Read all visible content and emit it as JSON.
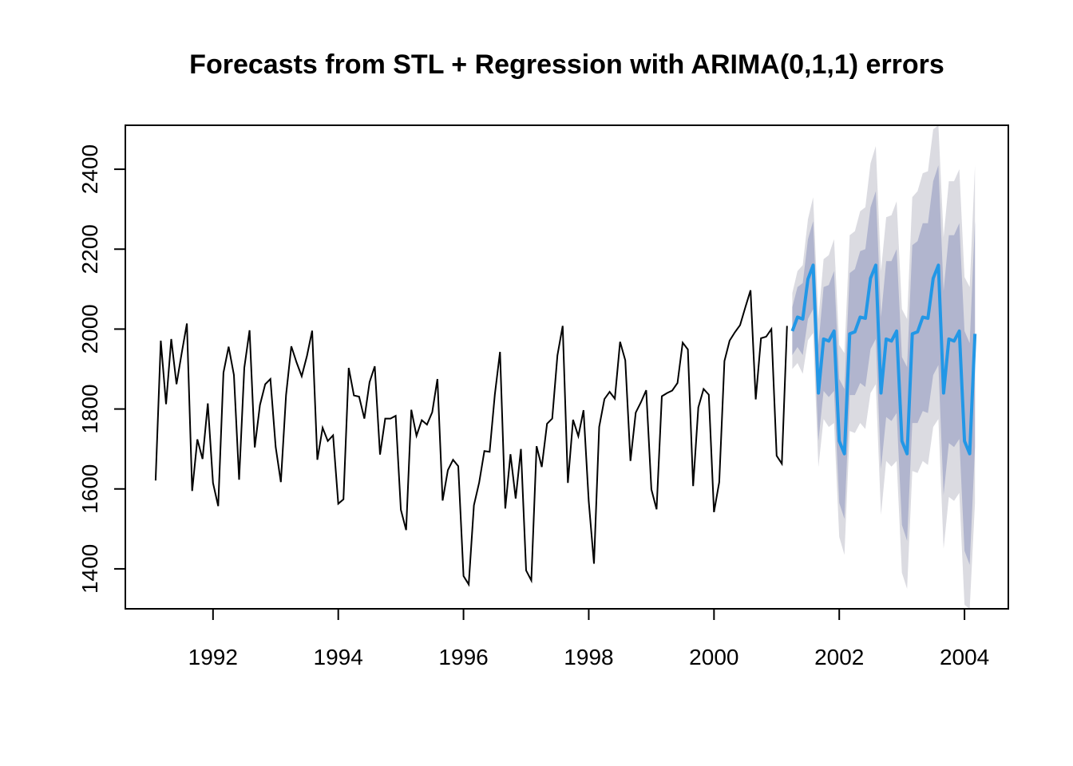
{
  "chart_data": {
    "type": "line",
    "title": "Forecasts from STL +  Regression with ARIMA(0,1,1) errors",
    "xlabel": "",
    "ylabel": "",
    "xlim": [
      1990.6,
      2004.7
    ],
    "ylim": [
      1300,
      2510
    ],
    "x_ticks": [
      1992,
      1994,
      1996,
      1998,
      2000,
      2002,
      2004
    ],
    "y_ticks": [
      1400,
      1600,
      1800,
      2000,
      2200,
      2400
    ],
    "grid": false,
    "legend": "none",
    "colors": {
      "history": "#000000",
      "forecast": "#2297e6",
      "band80": "#b1b5ce",
      "band95": "#dbdbe1"
    },
    "history": {
      "start": 1991.0833,
      "step": 0.083333,
      "values": [
        1621,
        1971,
        1812,
        1975,
        1862,
        1940,
        2014,
        1595,
        1724,
        1675,
        1814,
        1615,
        1557,
        1891,
        1956,
        1885,
        1623,
        1903,
        1997,
        1704,
        1810,
        1862,
        1875,
        1705,
        1617,
        1835,
        1957,
        1917,
        1882,
        1933,
        1996,
        1673,
        1753,
        1720,
        1734,
        1563,
        1574,
        1903,
        1834,
        1831,
        1776,
        1867,
        1907,
        1686,
        1776,
        1776,
        1783,
        1548,
        1497,
        1798,
        1733,
        1772,
        1761,
        1792,
        1875,
        1571,
        1647,
        1673,
        1657,
        1382,
        1361,
        1559,
        1616,
        1695,
        1693,
        1836,
        1943,
        1551,
        1687,
        1576,
        1700,
        1396,
        1371,
        1707,
        1655,
        1763,
        1776,
        1934,
        2008,
        1615,
        1773,
        1732,
        1797,
        1570,
        1413,
        1755,
        1825,
        1843,
        1826,
        1968,
        1922,
        1670,
        1791,
        1817,
        1847,
        1599,
        1549,
        1832,
        1840,
        1846,
        1865,
        1966,
        1949,
        1607,
        1804,
        1850,
        1836,
        1542,
        1617,
        1920,
        1971,
        1992,
        2010,
        2054,
        2097,
        1824,
        1977,
        1981,
        2000,
        1683,
        1663,
        2008
      ]
    },
    "forecast": {
      "start": 2001.25,
      "step": 0.083333,
      "mean": [
        1995,
        2030,
        2025,
        2125,
        2160,
        1840,
        1975,
        1970,
        1995,
        1720,
        1688,
        1988,
        1993,
        2030,
        2027,
        2127,
        2160,
        1840,
        1975,
        1970,
        1995,
        1720,
        1688,
        1988,
        1993,
        2030,
        2027,
        2127,
        2160,
        1840,
        1975,
        1970,
        1995,
        1720,
        1688,
        1988
      ],
      "lo80": [
        1935,
        1955,
        1935,
        2025,
        2050,
        1720,
        1845,
        1830,
        1845,
        1565,
        1525,
        1835,
        1835,
        1865,
        1855,
        1950,
        1975,
        1650,
        1780,
        1770,
        1790,
        1510,
        1470,
        1765,
        1765,
        1795,
        1790,
        1885,
        1910,
        1585,
        1715,
        1705,
        1725,
        1445,
        1410,
        1705
      ],
      "hi80": [
        2055,
        2105,
        2115,
        2225,
        2270,
        1960,
        2105,
        2110,
        2145,
        1875,
        1850,
        2140,
        2150,
        2195,
        2200,
        2305,
        2345,
        2030,
        2170,
        2170,
        2200,
        1930,
        1905,
        2210,
        2220,
        2265,
        2265,
        2370,
        2410,
        2095,
        2235,
        2235,
        2265,
        1995,
        1965,
        2270
      ],
      "lo95": [
        1900,
        1915,
        1888,
        1972,
        1990,
        1655,
        1775,
        1755,
        1765,
        1480,
        1435,
        1745,
        1740,
        1765,
        1750,
        1840,
        1862,
        1535,
        1670,
        1656,
        1670,
        1390,
        1350,
        1645,
        1640,
        1670,
        1660,
        1755,
        1775,
        1450,
        1580,
        1570,
        1590,
        1310,
        1270,
        1565
      ],
      "hi95": [
        2090,
        2145,
        2160,
        2275,
        2330,
        2025,
        2175,
        2185,
        2225,
        1960,
        1940,
        2235,
        2245,
        2295,
        2305,
        2415,
        2458,
        2145,
        2280,
        2285,
        2320,
        2050,
        2025,
        2330,
        2345,
        2390,
        2395,
        2500,
        2545,
        2230,
        2370,
        2370,
        2400,
        2130,
        2105,
        2410
      ]
    }
  }
}
